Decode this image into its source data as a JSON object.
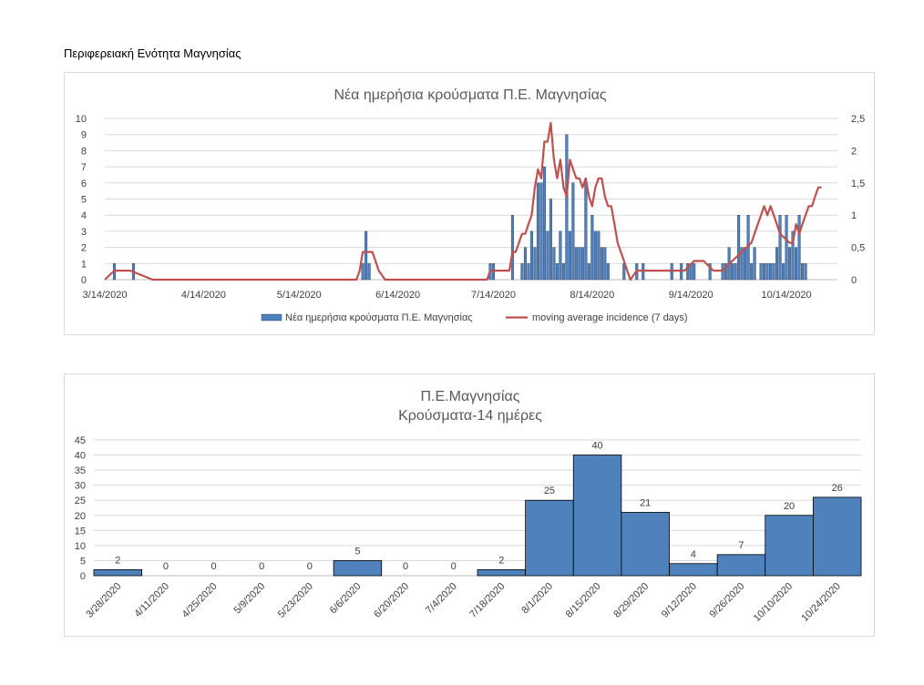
{
  "page": {
    "heading": "Περιφερειακή Ενότητα Μαγνησίας"
  },
  "colors": {
    "bar": "#4f81bd",
    "bar_stroke": "#1f3864",
    "line": "#c0504d",
    "grid": "#d9d9d9",
    "axis_text": "#404040"
  },
  "chart_data": [
    {
      "type": "bar+line",
      "title": "Νέα ημερήσια κρούσματα Π.Ε. Μαγνησίας",
      "x_start_date": "3/14/2020",
      "x_tick_labels": [
        "3/14/2020",
        "4/14/2020",
        "5/14/2020",
        "6/14/2020",
        "7/14/2020",
        "8/14/2020",
        "9/14/2020",
        "10/14/2020"
      ],
      "y_left_ticks": [
        "0",
        "1",
        "2",
        "3",
        "4",
        "5",
        "6",
        "7",
        "8",
        "9",
        "10"
      ],
      "y_left_lim": [
        0,
        10
      ],
      "y_right_ticks": [
        "0",
        "0,5",
        "1",
        "1,5",
        "2",
        "2,5"
      ],
      "y_right_lim": [
        0,
        2.5
      ],
      "grid": true,
      "legend_position": "bottom",
      "series": [
        {
          "name": "Νέα ημερήσια κρούσματα Π.Ε. Μαγνησίας",
          "kind": "bar",
          "axis": "left",
          "dates": [
            "3/17/2020",
            "3/23/2020",
            "6/3/2020",
            "6/4/2020",
            "6/5/2020",
            "7/13/2020",
            "7/14/2020",
            "7/20/2020",
            "7/23/2020",
            "7/24/2020",
            "7/25/2020",
            "7/26/2020",
            "7/27/2020",
            "7/28/2020",
            "7/29/2020",
            "7/30/2020",
            "7/31/2020",
            "8/1/2020",
            "8/2/2020",
            "8/3/2020",
            "8/4/2020",
            "8/5/2020",
            "8/6/2020",
            "8/7/2020",
            "8/8/2020",
            "8/9/2020",
            "8/10/2020",
            "8/11/2020",
            "8/12/2020",
            "8/13/2020",
            "8/14/2020",
            "8/15/2020",
            "8/16/2020",
            "8/17/2020",
            "8/18/2020",
            "8/19/2020",
            "8/24/2020",
            "8/28/2020",
            "8/30/2020",
            "9/8/2020",
            "9/11/2020",
            "9/13/2020",
            "9/14/2020",
            "9/15/2020",
            "9/20/2020",
            "9/24/2020",
            "9/25/2020",
            "9/26/2020",
            "9/27/2020",
            "9/28/2020",
            "9/29/2020",
            "9/30/2020",
            "10/1/2020",
            "10/2/2020",
            "10/3/2020",
            "10/4/2020",
            "10/6/2020",
            "10/7/2020",
            "10/8/2020",
            "10/9/2020",
            "10/10/2020",
            "10/11/2020",
            "10/12/2020",
            "10/13/2020",
            "10/14/2020",
            "10/15/2020",
            "10/16/2020",
            "10/17/2020",
            "10/18/2020",
            "10/19/2020",
            "10/20/2020"
          ],
          "values": [
            1,
            1,
            1,
            3,
            1,
            1,
            1,
            4,
            1,
            2,
            1,
            3,
            2,
            6,
            6,
            7,
            3,
            5,
            2,
            1,
            3,
            1,
            9,
            3,
            6,
            2,
            2,
            2,
            6,
            1,
            4,
            3,
            3,
            2,
            2,
            1,
            1,
            1,
            1,
            1,
            1,
            1,
            1,
            1,
            1,
            1,
            1,
            2,
            1,
            1,
            4,
            2,
            2,
            4,
            1,
            2,
            1,
            1,
            1,
            1,
            1,
            2,
            4,
            1,
            4,
            2,
            3,
            2,
            4,
            1,
            1
          ]
        },
        {
          "name": "moving average incidence (7 days)",
          "kind": "line",
          "axis": "right",
          "dates": [
            "3/14/2020",
            "3/17/2020",
            "3/22/2020",
            "3/29/2020",
            "3/30/2020",
            "6/1/2020",
            "6/2/2020",
            "6/3/2020",
            "6/4/2020",
            "6/6/2020",
            "6/7/2020",
            "6/8/2020",
            "6/10/2020",
            "6/11/2020",
            "7/12/2020",
            "7/13/2020",
            "7/14/2020",
            "7/19/2020",
            "7/20/2020",
            "7/21/2020",
            "7/22/2020",
            "7/23/2020",
            "7/24/2020",
            "7/25/2020",
            "7/26/2020",
            "7/27/2020",
            "7/28/2020",
            "7/29/2020",
            "7/30/2020",
            "7/31/2020",
            "8/1/2020",
            "8/2/2020",
            "8/3/2020",
            "8/4/2020",
            "8/5/2020",
            "8/6/2020",
            "8/7/2020",
            "8/8/2020",
            "8/9/2020",
            "8/10/2020",
            "8/11/2020",
            "8/12/2020",
            "8/13/2020",
            "8/14/2020",
            "8/15/2020",
            "8/16/2020",
            "8/17/2020",
            "8/18/2020",
            "8/19/2020",
            "8/20/2020",
            "8/21/2020",
            "8/22/2020",
            "8/23/2020",
            "8/24/2020",
            "8/25/2020",
            "8/26/2020",
            "8/28/2020",
            "8/31/2020",
            "9/3/2020",
            "9/6/2020",
            "9/9/2020",
            "9/12/2020",
            "9/15/2020",
            "9/18/2020",
            "9/21/2020",
            "9/24/2020",
            "9/27/2020",
            "9/30/2020",
            "10/3/2020",
            "10/5/2020",
            "10/6/2020",
            "10/7/2020",
            "10/8/2020",
            "10/9/2020",
            "10/10/2020",
            "10/12/2020",
            "10/15/2020",
            "10/16/2020",
            "10/17/2020",
            "10/18/2020",
            "10/19/2020",
            "10/20/2020",
            "10/21/2020",
            "10/22/2020",
            "10/23/2020",
            "10/24/2020",
            "10/25/2020"
          ],
          "values": [
            0,
            0.14,
            0.14,
            0,
            0,
            0,
            0.14,
            0.43,
            0.43,
            0.43,
            0.29,
            0.14,
            0,
            0,
            0,
            0.14,
            0.14,
            0.14,
            0.43,
            0.43,
            0.57,
            0.71,
            0.71,
            0.86,
            1.0,
            1.43,
            1.71,
            1.57,
            2.14,
            2.14,
            2.43,
            1.86,
            1.57,
            1.86,
            1.43,
            1.29,
            1.86,
            1.71,
            1.57,
            1.57,
            1.43,
            1.57,
            1.29,
            1.14,
            1.43,
            1.57,
            1.57,
            1.29,
            1.14,
            1.14,
            0.86,
            0.57,
            0.43,
            0.29,
            0.14,
            0,
            0.14,
            0.14,
            0.14,
            0.14,
            0.14,
            0.14,
            0.29,
            0.29,
            0.14,
            0.14,
            0.29,
            0.43,
            0.57,
            0.86,
            1.0,
            1.14,
            1.0,
            1.14,
            1.0,
            0.71,
            0.57,
            0.57,
            0.86,
            0.71,
            0.86,
            1.0,
            1.14,
            1.14,
            1.29,
            1.43,
            1.43
          ]
        }
      ]
    },
    {
      "type": "bar",
      "title_lines": [
        "Π.Ε.Μαγνησίας",
        "Κρούσματα-14 ημέρες"
      ],
      "categories": [
        "3/28/2020",
        "4/11/2020",
        "4/25/2020",
        "5/9/2020",
        "5/23/2020",
        "6/6/2020",
        "6/20/2020",
        "7/4/2020",
        "7/18/2020",
        "8/1/2020",
        "8/15/2020",
        "8/29/2020",
        "9/12/2020",
        "9/26/2020",
        "10/10/2020",
        "10/24/2020"
      ],
      "values": [
        2,
        0,
        0,
        0,
        0,
        5,
        0,
        0,
        2,
        25,
        40,
        21,
        4,
        7,
        20,
        26
      ],
      "y_ticks": [
        "0",
        "5",
        "10",
        "15",
        "20",
        "25",
        "30",
        "35",
        "40",
        "45"
      ],
      "ylim": [
        0,
        45
      ],
      "grid": true,
      "data_labels": true
    }
  ]
}
